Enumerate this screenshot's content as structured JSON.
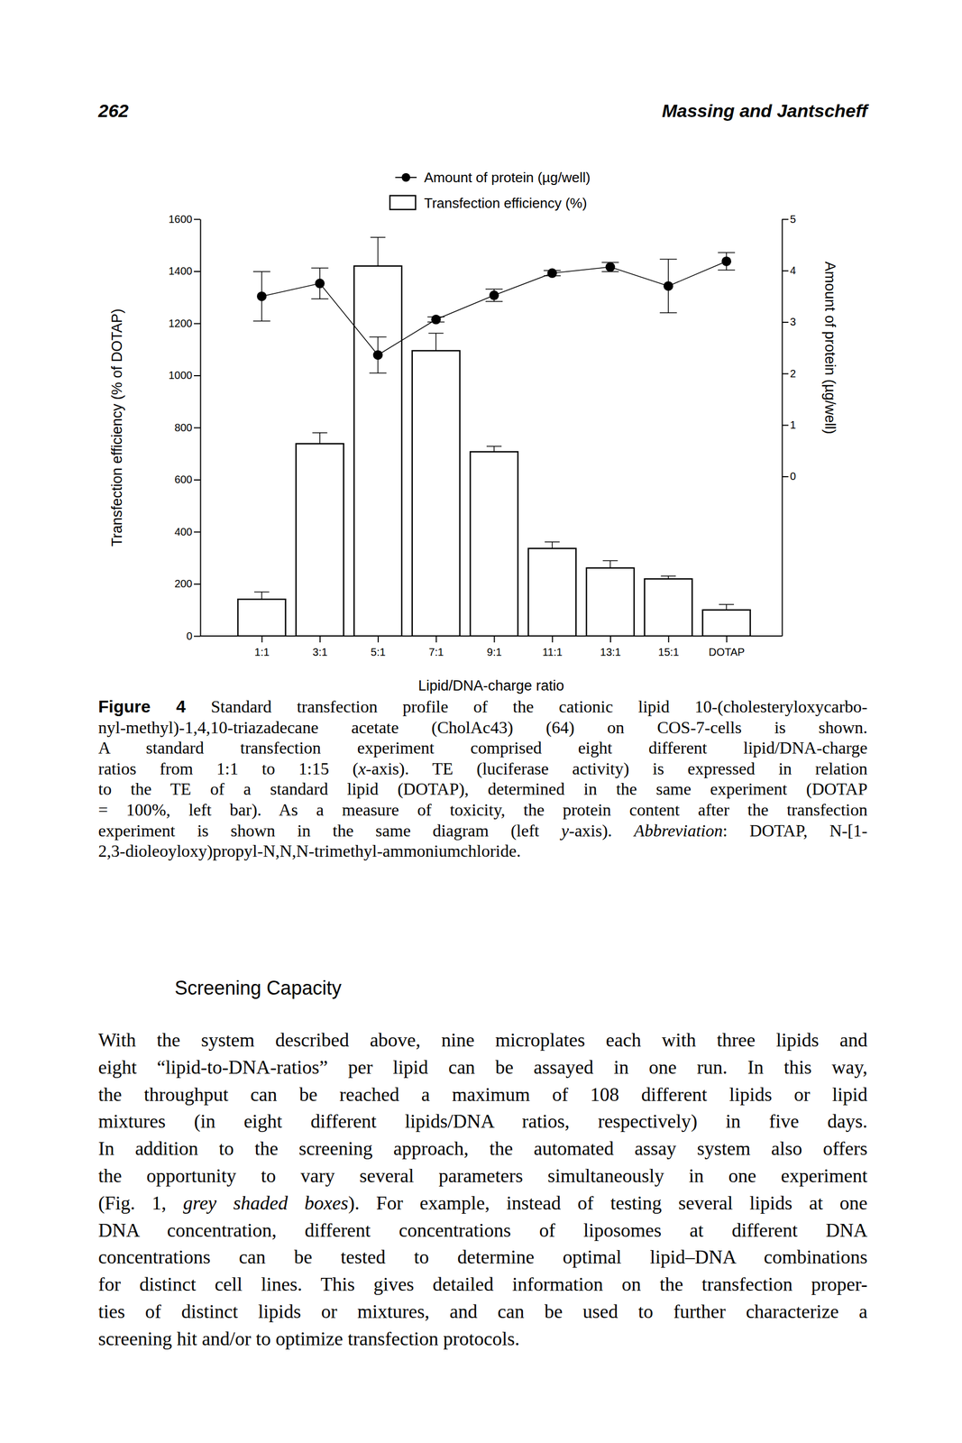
{
  "header": {
    "page_number": "262",
    "running_head": "Massing and Jantscheff"
  },
  "chart_data": {
    "type": "bar",
    "categories": [
      "1:1",
      "3:1",
      "5:1",
      "7:1",
      "9:1",
      "11:1",
      "13:1",
      "15:1",
      "DOTAP"
    ],
    "xlabel": "Lipid/DNA-charge ratio",
    "ylabel": "Transfection efficiency (% of DOTAP)",
    "y2label": "Amount of protein (µg/well)",
    "ylim": [
      0,
      1600
    ],
    "yticks": [
      0,
      200,
      400,
      600,
      800,
      1000,
      1200,
      1400,
      1600
    ],
    "y2lim": [
      -3.1,
      5
    ],
    "y2ticks": [
      0,
      1,
      2,
      3,
      4,
      5
    ],
    "legend": "top",
    "series": [
      {
        "name": "Amount of protein (µg/well)",
        "type": "line",
        "marker": "circle",
        "color": "#000000",
        "axis": "y2",
        "values": [
          3.5,
          3.75,
          2.36,
          3.05,
          3.52,
          3.95,
          4.07,
          3.7,
          4.18
        ],
        "errors": [
          0.48,
          0.3,
          0.35,
          0.05,
          0.12,
          0.05,
          0.09,
          0.52,
          0.17
        ]
      },
      {
        "name": "Transfection efficiency (%)",
        "type": "bar",
        "color": "#ffffff",
        "values": [
          141,
          738,
          1420,
          1095,
          707,
          336,
          261,
          219,
          100
        ],
        "errors": [
          28,
          42,
          110,
          67,
          21,
          25,
          28,
          11,
          21
        ]
      }
    ]
  },
  "caption": {
    "lines": [
      [
        {
          "text": "Figure 4",
          "bold": true
        },
        {
          "text": " Standard transfection profile of the cationic lipid 10-(cholesteryloxycarbo-"
        }
      ],
      [
        {
          "text": "nyl-methyl)-1,4,10-triazadecane acetate (CholAc43) (64) on COS-7-cells is shown."
        }
      ],
      [
        {
          "text": "A standard transfection experiment comprised eight different lipid/DNA-charge"
        }
      ],
      [
        {
          "text": "ratios from 1:1 to 1:15 ("
        },
        {
          "text": "x",
          "italic": true
        },
        {
          "text": "-axis). TE (luciferase activity) is expressed in relation"
        }
      ],
      [
        {
          "text": "to the TE of a standard lipid (DOTAP), determined in the same experiment (DOTAP"
        }
      ],
      [
        {
          "text": "= 100%, left bar). As a measure of toxicity, the protein content after the transfection"
        }
      ],
      [
        {
          "text": "experiment is shown in the same diagram (left "
        },
        {
          "text": "y",
          "italic": true
        },
        {
          "text": "-axis). "
        },
        {
          "text": "Abbreviation",
          "italic": true
        },
        {
          "text": ": DOTAP, N-[1-"
        }
      ],
      [
        {
          "text": "2,3-dioleoyloxy)propyl-N,N,N-trimethyl-ammoniumchloride."
        }
      ]
    ]
  },
  "section": {
    "heading": "Screening Capacity",
    "lines": [
      [
        {
          "text": "With the system described above, nine microplates each with three lipids and"
        }
      ],
      [
        {
          "text": "eight “lipid-to-DNA-ratios” per lipid can be assayed in one run. In this way,"
        }
      ],
      [
        {
          "text": "the throughput can be reached a maximum of 108 different lipids or lipid"
        }
      ],
      [
        {
          "text": "mixtures (in eight different lipids/DNA ratios, respectively) in five days."
        }
      ],
      [
        {
          "text": "In addition to the screening approach, the automated assay system also offers"
        }
      ],
      [
        {
          "text": "the opportunity to vary several parameters simultaneously in one experiment"
        }
      ],
      [
        {
          "text": "(Fig. 1, "
        },
        {
          "text": "grey shaded boxes",
          "italic": true
        },
        {
          "text": "). For example, instead of testing several lipids at one"
        }
      ],
      [
        {
          "text": "DNA concentration, different concentrations of liposomes at different DNA"
        }
      ],
      [
        {
          "text": "concentrations can be tested to determine optimal lipid–DNA combinations"
        }
      ],
      [
        {
          "text": "for distinct cell lines. This gives detailed information on the transfection proper-"
        }
      ],
      [
        {
          "text": "ties of distinct lipids or mixtures, and can be used to further characterize a"
        }
      ],
      [
        {
          "text": "screening hit and/or to optimize transfection protocols."
        }
      ]
    ]
  }
}
